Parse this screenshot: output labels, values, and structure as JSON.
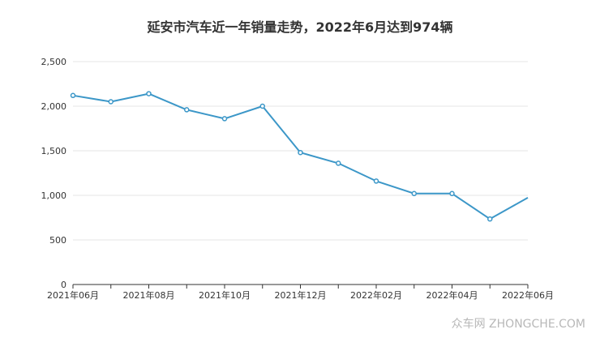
{
  "chart_data": {
    "type": "line",
    "title": "延安市汽车近一年销量走势，2022年6月达到974辆",
    "x": [
      "2021年06月",
      "2021年07月",
      "2021年08月",
      "2021年09月",
      "2021年10月",
      "2021年11月",
      "2021年12月",
      "2022年01月",
      "2022年02月",
      "2022年03月",
      "2022年04月",
      "2022年05月",
      "2022年06月"
    ],
    "x_tick_labels": [
      "2021年06月",
      "2021年08月",
      "2021年10月",
      "2021年12月",
      "2022年02月",
      "2022年04月",
      "2022年06月"
    ],
    "series": [
      {
        "values": [
          2120,
          2050,
          2140,
          1960,
          1860,
          2000,
          1480,
          1360,
          1160,
          1020,
          1020,
          735,
          974
        ]
      }
    ],
    "y_ticks": [
      0,
      500,
      1000,
      1500,
      2000,
      2500
    ],
    "y_tick_labels": [
      "0",
      "500",
      "1,000",
      "1,500",
      "2,000",
      "2,500"
    ],
    "ylim": [
      0,
      2500
    ],
    "grid": true,
    "line_color": "#3c97c8"
  },
  "watermark": "众车网 ZHONGCHE.COM"
}
